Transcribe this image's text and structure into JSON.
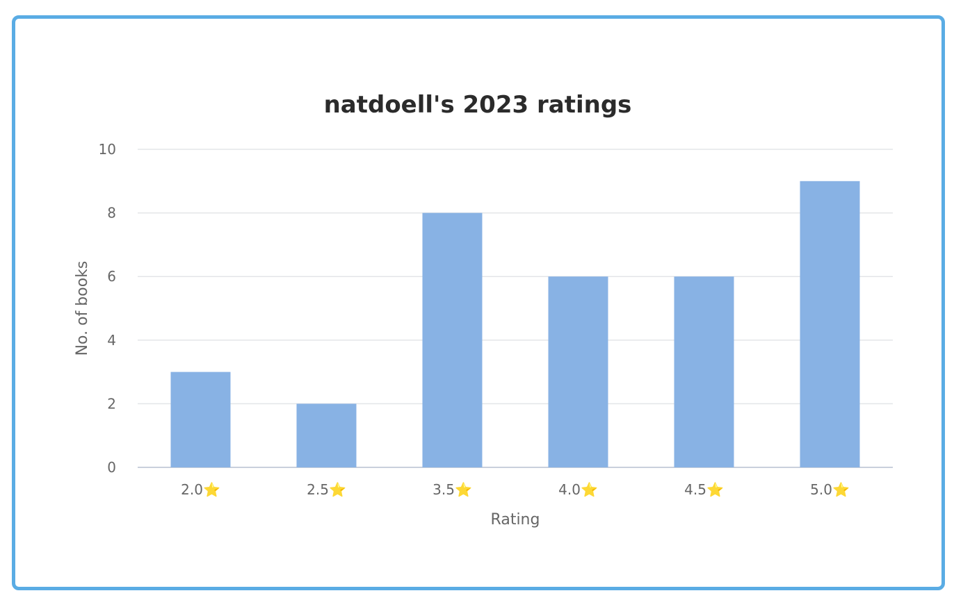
{
  "chart_data": {
    "type": "bar",
    "title": "natdoell's 2023 ratings",
    "xlabel": "Rating",
    "ylabel": "No. of books",
    "categories": [
      "2.0",
      "2.5",
      "3.5",
      "4.0",
      "4.5",
      "5.0"
    ],
    "category_suffix": "⭐",
    "values": [
      3,
      2,
      8,
      6,
      6,
      9
    ],
    "ylim": [
      0,
      10
    ],
    "yticks": [
      0,
      2,
      4,
      6,
      8,
      10
    ],
    "grid": true,
    "legend": false,
    "bar_color": "#88b2e4",
    "grid_color": "#e3e5e8",
    "border_color": "#5aace4"
  }
}
